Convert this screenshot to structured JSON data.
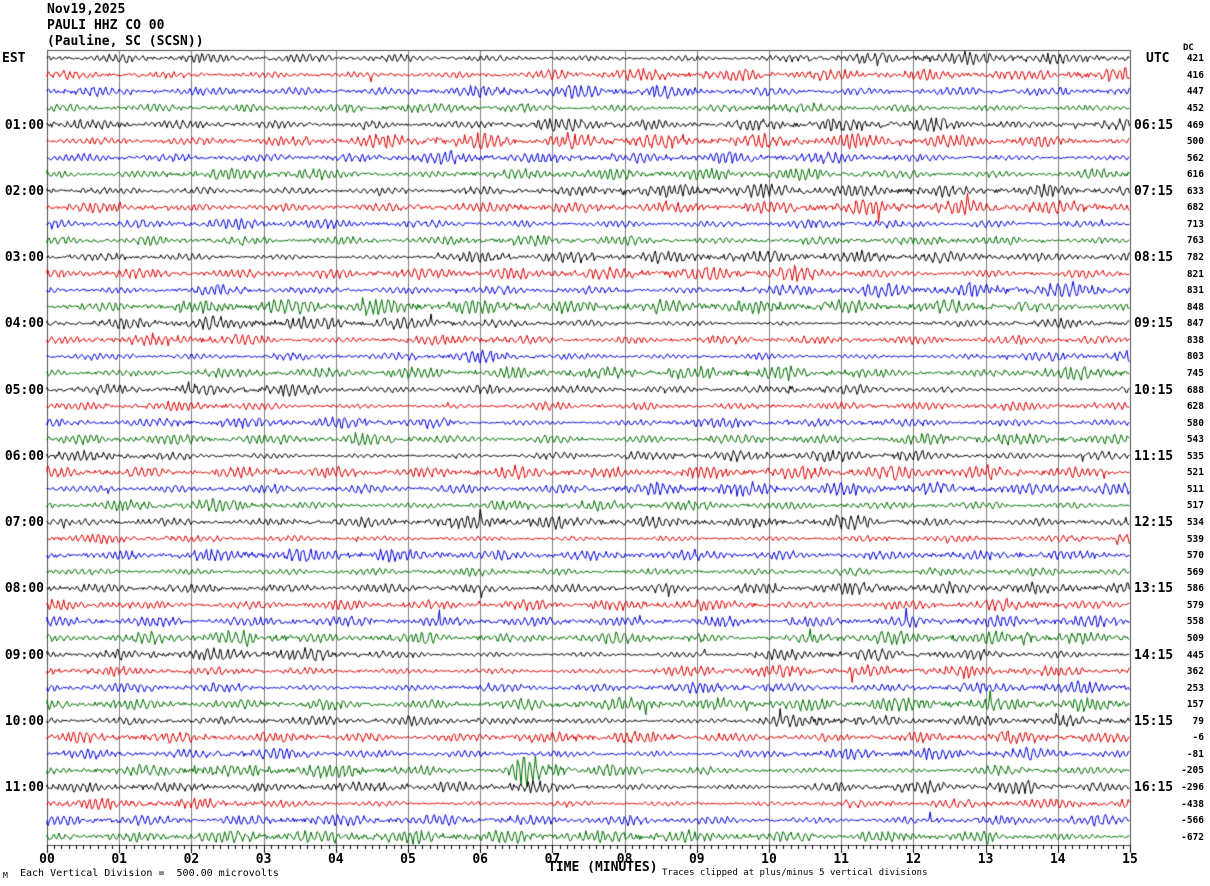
{
  "header": {
    "date": "Nov19,2025",
    "station": "PAULI HHZ CO 00",
    "location": "(Pauline, SC (SCSN))"
  },
  "axis": {
    "left_tz": "EST",
    "right_tz": "UTC",
    "dc_label": "DC",
    "x_title": "TIME (MINUTES)",
    "x_ticks": [
      "00",
      "01",
      "02",
      "03",
      "04",
      "05",
      "06",
      "07",
      "08",
      "09",
      "10",
      "11",
      "12",
      "13",
      "14",
      "15"
    ],
    "left_times": [
      {
        "row": 5,
        "label": "01:00"
      },
      {
        "row": 9,
        "label": "02:00"
      },
      {
        "row": 13,
        "label": "03:00"
      },
      {
        "row": 17,
        "label": "04:00"
      },
      {
        "row": 21,
        "label": "05:00"
      },
      {
        "row": 25,
        "label": "06:00"
      },
      {
        "row": 29,
        "label": "07:00"
      },
      {
        "row": 33,
        "label": "08:00"
      },
      {
        "row": 37,
        "label": "09:00"
      },
      {
        "row": 41,
        "label": "10:00"
      },
      {
        "row": 45,
        "label": "11:00"
      }
    ],
    "right_times": [
      {
        "row": 5,
        "label": "06:15"
      },
      {
        "row": 9,
        "label": "07:15"
      },
      {
        "row": 13,
        "label": "08:15"
      },
      {
        "row": 17,
        "label": "09:15"
      },
      {
        "row": 21,
        "label": "10:15"
      },
      {
        "row": 25,
        "label": "11:15"
      },
      {
        "row": 29,
        "label": "12:15"
      },
      {
        "row": 33,
        "label": "13:15"
      },
      {
        "row": 37,
        "label": "14:15"
      },
      {
        "row": 41,
        "label": "15:15"
      },
      {
        "row": 45,
        "label": "16:15"
      }
    ]
  },
  "footer": {
    "scale_note": "Each Vertical Division =  500.00 microvolts",
    "clip_note": "Traces clipped at plus/minus 5 vertical divisions",
    "corner_mark": "M"
  },
  "chart_data": {
    "type": "line",
    "title": "PAULI HHZ CO 00 helicorder, Nov19,2025, Pauline SC (SCSN)",
    "xlabel": "TIME (MINUTES)",
    "x_range": [
      0,
      15
    ],
    "minor_tick_minutes": 0.1,
    "rows": 48,
    "minutes_per_row": 15,
    "row_color_cycle": [
      "#000000",
      "#dd0000",
      "#0000dd",
      "#006e00"
    ],
    "dc_values": [
      421,
      416,
      447,
      452,
      469,
      500,
      562,
      616,
      633,
      682,
      713,
      763,
      782,
      821,
      831,
      848,
      847,
      838,
      803,
      745,
      688,
      628,
      580,
      543,
      535,
      521,
      511,
      517,
      534,
      539,
      570,
      569,
      586,
      579,
      558,
      509,
      445,
      362,
      253,
      157,
      79,
      -6,
      -81,
      -205,
      -296,
      -438,
      -566,
      -672
    ],
    "vertical_division_microvolts": 500.0,
    "clip_divisions": 5,
    "events": [
      {
        "row": 21,
        "start_min": 10.2,
        "end_min": 11.7,
        "gain": 2.1
      },
      {
        "row": 29,
        "start_min": 10.8,
        "end_min": 11.5,
        "gain": 1.9
      },
      {
        "row": 36,
        "start_min": 13.5,
        "end_min": 13.9,
        "gain": 2.3
      },
      {
        "row": 37,
        "start_min": 12.8,
        "end_min": 13.3,
        "gain": 1.8
      },
      {
        "row": 42,
        "start_min": 3.2,
        "end_min": 6.6,
        "gain": 1.5
      },
      {
        "row": 44,
        "start_min": 6.35,
        "end_min": 9.2,
        "gain": 5.2
      },
      {
        "row": 45,
        "start_min": 6.35,
        "end_min": 7.2,
        "gain": 1.6
      }
    ]
  },
  "layout_colors": {
    "background": "#ffffff",
    "grid": "#808080",
    "frame": "#505050",
    "text": "#000000"
  }
}
